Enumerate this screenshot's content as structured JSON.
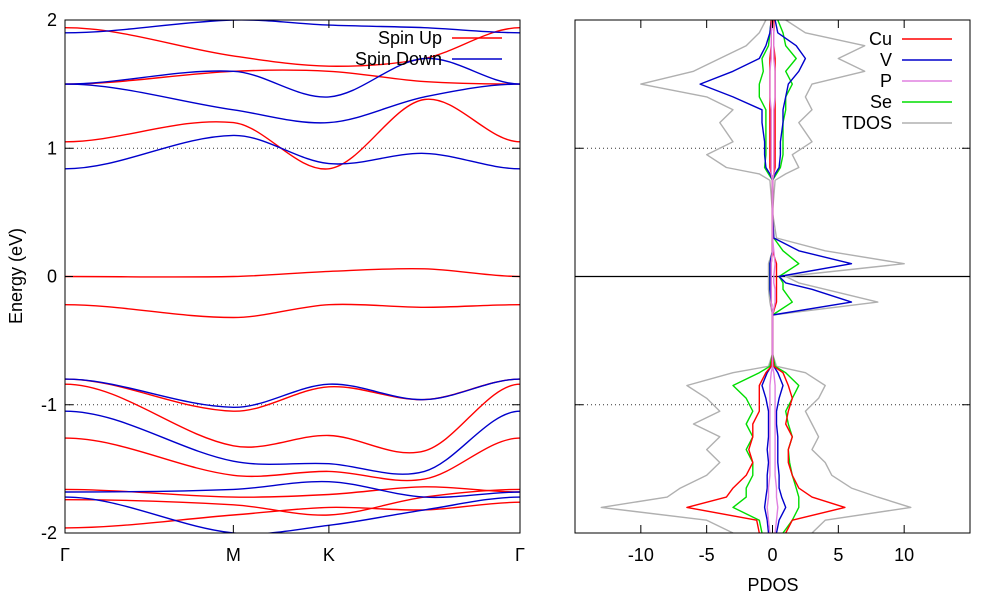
{
  "chart_data": [
    {
      "type": "line",
      "title": "",
      "xlabel": "",
      "ylabel": "Energy (eV)",
      "ylim": [
        -2,
        2
      ],
      "yticks": [
        -2,
        -1,
        0,
        1,
        2
      ],
      "ytick_labels": [
        "-2",
        "-1",
        "0",
        "1",
        "2"
      ],
      "x": [
        0,
        0.37,
        0.58,
        1.0
      ],
      "xtick_labels": [
        "Γ",
        "M",
        "K",
        "Γ"
      ],
      "reference_lines": [
        -1,
        1
      ],
      "legend": {
        "placement": "top-right",
        "entries": [
          {
            "label": "Spin Up",
            "color": "#ff0000"
          },
          {
            "label": "Spin Down",
            "color": "#0000cc"
          }
        ]
      },
      "series": [
        {
          "name": "Spin Up",
          "color": "#ff0000",
          "bands": [
            [
              -1.96,
              -1.86,
              -1.8,
              -1.82,
              -1.76
            ],
            [
              -1.74,
              -1.78,
              -1.86,
              -1.72,
              -1.66
            ],
            [
              -1.66,
              -1.72,
              -1.7,
              -1.64,
              -1.68
            ],
            [
              -1.26,
              -1.55,
              -1.52,
              -1.58,
              -1.26
            ],
            [
              -0.84,
              -1.32,
              -1.24,
              -1.36,
              -0.84
            ],
            [
              -0.8,
              -1.05,
              -0.86,
              -0.96,
              -0.8
            ],
            [
              -0.22,
              -0.32,
              -0.22,
              -0.24,
              -0.22
            ],
            [
              0.0,
              0.0,
              0.04,
              0.06,
              0.0
            ],
            [
              1.05,
              1.2,
              0.84,
              1.38,
              1.05
            ],
            [
              1.5,
              1.6,
              1.6,
              1.52,
              1.5
            ],
            [
              1.94,
              1.72,
              1.64,
              1.7,
              1.94
            ]
          ]
        },
        {
          "name": "Spin Down",
          "color": "#0000cc",
          "bands": [
            [
              -1.72,
              -2.0,
              -1.94,
              -1.82,
              -1.72
            ],
            [
              -1.68,
              -1.66,
              -1.6,
              -1.72,
              -1.68
            ],
            [
              -1.05,
              -1.44,
              -1.46,
              -1.52,
              -1.05
            ],
            [
              -0.8,
              -1.02,
              -0.84,
              -0.96,
              -0.8
            ],
            [
              0.84,
              1.1,
              0.88,
              0.96,
              0.84
            ],
            [
              1.5,
              1.3,
              1.2,
              1.4,
              1.5
            ],
            [
              1.5,
              1.6,
              1.4,
              1.7,
              1.5
            ],
            [
              1.9,
              2.0,
              1.96,
              1.94,
              1.9
            ]
          ]
        }
      ]
    },
    {
      "type": "line",
      "title": "",
      "xlabel": "PDOS",
      "ylabel": "",
      "xlim": [
        -15,
        15
      ],
      "ylim": [
        -2,
        2
      ],
      "xticks": [
        -10,
        -5,
        0,
        5,
        10
      ],
      "xtick_labels": [
        "-10",
        "-5",
        "0",
        "5",
        "10"
      ],
      "reference_lines": [
        -1,
        1
      ],
      "legend": {
        "placement": "top-right",
        "entries": [
          {
            "label": "Cu",
            "color": "#ff0000"
          },
          {
            "label": "V",
            "color": "#0000cc"
          },
          {
            "label": "P",
            "color": "#e080e0"
          },
          {
            "label": "Se",
            "color": "#00dd00"
          },
          {
            "label": "TDOS",
            "color": "#b0b0b0"
          }
        ]
      },
      "energy": [
        -2.0,
        -1.9,
        -1.8,
        -1.72,
        -1.65,
        -1.55,
        -1.45,
        -1.35,
        -1.25,
        -1.15,
        -1.05,
        -0.95,
        -0.85,
        -0.75,
        -0.7,
        -0.6,
        -0.3,
        -0.2,
        -0.1,
        -0.05,
        0.0,
        0.1,
        0.2,
        0.3,
        0.5,
        0.75,
        0.8,
        0.85,
        0.95,
        1.05,
        1.2,
        1.3,
        1.4,
        1.5,
        1.6,
        1.7,
        1.8,
        1.9,
        2.0
      ],
      "series": [
        {
          "name": "TDOS",
          "color": "#b0b0b0",
          "left": [
            -3.0,
            -5.0,
            -13.0,
            -8.0,
            -7.0,
            -5.0,
            -4.0,
            -5.0,
            -4.0,
            -6.0,
            -4.0,
            -5.0,
            -6.5,
            -3.0,
            -0.3,
            0.0,
            0.0,
            -0.2,
            -0.3,
            -0.3,
            -0.3,
            -0.3,
            0.0,
            0.0,
            0.0,
            -0.2,
            -1.0,
            -3.5,
            -5.0,
            -3.0,
            -4.0,
            -3.0,
            -5.0,
            -10.0,
            -6.0,
            -4.0,
            -2.0,
            -1.0,
            -0.5
          ],
          "right": [
            3.0,
            4.0,
            10.5,
            8.0,
            6.0,
            4.5,
            4.0,
            3.0,
            3.5,
            3.0,
            2.5,
            3.5,
            4.0,
            2.5,
            0.3,
            0.0,
            0.0,
            8.0,
            4.0,
            2.0,
            1.0,
            10.0,
            4.0,
            0.3,
            0.0,
            0.2,
            1.0,
            2.0,
            1.5,
            3.0,
            2.0,
            3.0,
            2.5,
            3.0,
            7.0,
            5.0,
            7.0,
            2.5,
            1.0
          ]
        },
        {
          "name": "Se",
          "color": "#00dd00",
          "left": [
            -0.8,
            -1.0,
            -3.0,
            -2.0,
            -2.0,
            -1.5,
            -1.5,
            -2.0,
            -1.5,
            -2.0,
            -1.5,
            -2.0,
            -3.0,
            -1.0,
            -0.2,
            0.0,
            0.0,
            -0.1,
            -0.2,
            -0.2,
            -0.2,
            -0.2,
            0.0,
            0.0,
            0.0,
            0.0,
            -0.3,
            -0.6,
            -0.5,
            -0.5,
            -0.5,
            -0.5,
            -1.0,
            -1.0,
            -0.7,
            -0.8,
            -0.3,
            -0.2,
            -0.1
          ],
          "right": [
            0.8,
            1.5,
            2.0,
            2.0,
            1.8,
            1.5,
            1.3,
            1.2,
            1.5,
            1.2,
            1.0,
            1.5,
            2.0,
            1.0,
            0.2,
            0.0,
            0.0,
            1.5,
            0.8,
            0.8,
            0.5,
            2.0,
            0.8,
            0.1,
            0.0,
            0.0,
            0.3,
            0.6,
            0.8,
            0.8,
            0.8,
            1.0,
            1.0,
            1.5,
            1.0,
            1.8,
            1.0,
            0.8,
            0.4
          ]
        },
        {
          "name": "V",
          "color": "#0000cc",
          "left": [
            -0.3,
            -0.4,
            -0.6,
            -0.5,
            -0.4,
            -0.4,
            -0.3,
            -0.4,
            -0.3,
            -0.3,
            -0.3,
            -0.5,
            -0.8,
            -0.4,
            -0.1,
            0.0,
            0.0,
            -0.1,
            -0.2,
            -0.2,
            -0.2,
            -0.2,
            0.0,
            0.0,
            0.0,
            0.0,
            -0.2,
            -0.5,
            -0.6,
            -0.6,
            -0.8,
            -0.8,
            -3.0,
            -5.5,
            -3.0,
            -1.0,
            -0.5,
            -0.2,
            -0.1
          ],
          "right": [
            0.3,
            0.5,
            1.0,
            0.7,
            0.5,
            0.5,
            0.4,
            0.4,
            0.4,
            0.3,
            0.3,
            0.5,
            0.8,
            0.4,
            0.1,
            0.0,
            0.0,
            6.0,
            3.0,
            1.0,
            0.5,
            6.0,
            2.0,
            0.1,
            0.0,
            0.0,
            0.2,
            0.5,
            0.6,
            0.6,
            0.8,
            0.8,
            1.0,
            1.2,
            2.0,
            2.5,
            1.8,
            0.4,
            0.2
          ]
        },
        {
          "name": "Cu",
          "color": "#ff0000",
          "left": [
            -1.0,
            -1.2,
            -6.5,
            -3.5,
            -3.0,
            -2.0,
            -1.5,
            -1.8,
            -1.5,
            -1.5,
            -1.0,
            -1.0,
            -1.0,
            -0.5,
            -0.1,
            0.0,
            0.0,
            -0.1,
            -0.1,
            -0.1,
            -0.1,
            -0.1,
            0.0,
            0.0,
            0.0,
            0.0,
            -0.1,
            -0.2,
            -0.2,
            -0.2,
            -0.2,
            -0.2,
            -0.2,
            -0.2,
            -0.2,
            -0.2,
            -0.1,
            -0.1,
            -0.1
          ],
          "right": [
            1.0,
            1.5,
            5.5,
            3.0,
            2.0,
            1.5,
            1.2,
            1.2,
            1.5,
            1.0,
            1.2,
            1.5,
            1.2,
            0.8,
            0.1,
            0.0,
            0.0,
            0.3,
            0.3,
            0.3,
            0.3,
            0.3,
            0.0,
            0.0,
            0.0,
            0.0,
            0.1,
            0.2,
            0.2,
            0.2,
            0.2,
            0.2,
            0.2,
            0.2,
            0.2,
            0.2,
            0.1,
            0.1,
            0.1
          ]
        },
        {
          "name": "P",
          "color": "#e080e0",
          "left": [
            -0.2,
            -0.3,
            -0.4,
            -0.3,
            -0.3,
            -0.2,
            -0.2,
            -0.2,
            -0.2,
            -0.2,
            -0.2,
            -0.2,
            -0.2,
            -0.1,
            0.0,
            0.0,
            0.0,
            -0.1,
            -0.1,
            -0.1,
            -0.1,
            -0.1,
            0.0,
            0.0,
            0.0,
            0.0,
            -0.1,
            -0.1,
            -0.1,
            -0.1,
            -0.1,
            -0.1,
            -0.2,
            -0.2,
            -0.2,
            -0.1,
            -0.1,
            -0.1,
            0.0
          ],
          "right": [
            0.2,
            0.3,
            0.4,
            0.3,
            0.3,
            0.2,
            0.2,
            0.2,
            0.2,
            0.2,
            0.2,
            0.2,
            0.2,
            0.1,
            0.0,
            0.0,
            0.0,
            0.2,
            0.2,
            0.1,
            0.1,
            0.2,
            0.1,
            0.0,
            0.0,
            0.0,
            0.1,
            0.1,
            0.1,
            0.1,
            0.1,
            0.1,
            0.2,
            0.2,
            0.2,
            0.1,
            0.1,
            0.1,
            0.0
          ]
        }
      ]
    }
  ]
}
